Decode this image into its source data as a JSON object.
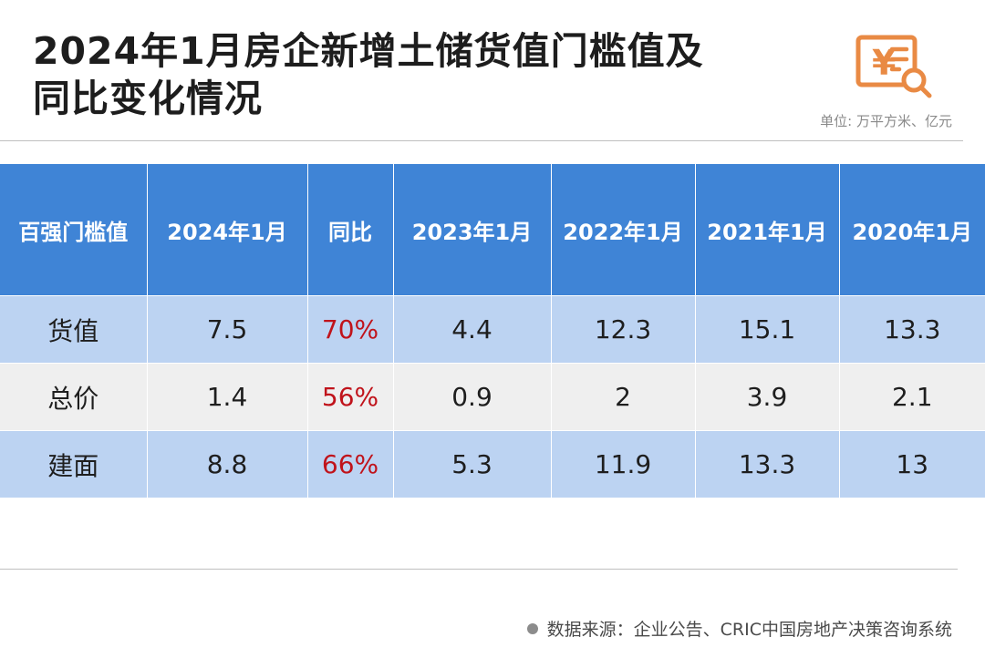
{
  "header": {
    "title_line1": "2024年1月房企新增土储货值门槛值及",
    "title_line2": "同比变化情况",
    "unit": "单位: 万平方米、亿元",
    "logo_icon": "yen-receipt-search-icon",
    "accent_color": "#e98a44"
  },
  "chart_data": {
    "type": "table",
    "columns": [
      "百强门槛值",
      "2024年1月",
      "同比",
      "2023年1月",
      "2022年1月",
      "2021年1月",
      "2020年1月"
    ],
    "rows": [
      [
        "货值",
        "7.5",
        "70%",
        "4.4",
        "12.3",
        "15.1",
        "13.3"
      ],
      [
        "总价",
        "1.4",
        "56%",
        "0.9",
        "2",
        "3.9",
        "2.1"
      ],
      [
        "建面",
        "8.8",
        "66%",
        "5.3",
        "11.9",
        "13.3",
        "13"
      ]
    ],
    "header_color": "#3f84d6",
    "row_colors": [
      "#bcd3f2",
      "#efefef",
      "#bcd3f2"
    ],
    "yoy_color": "#c0131b"
  },
  "footer": {
    "source": "数据来源：企业公告、CRIC中国房地产决策咨询系统"
  }
}
